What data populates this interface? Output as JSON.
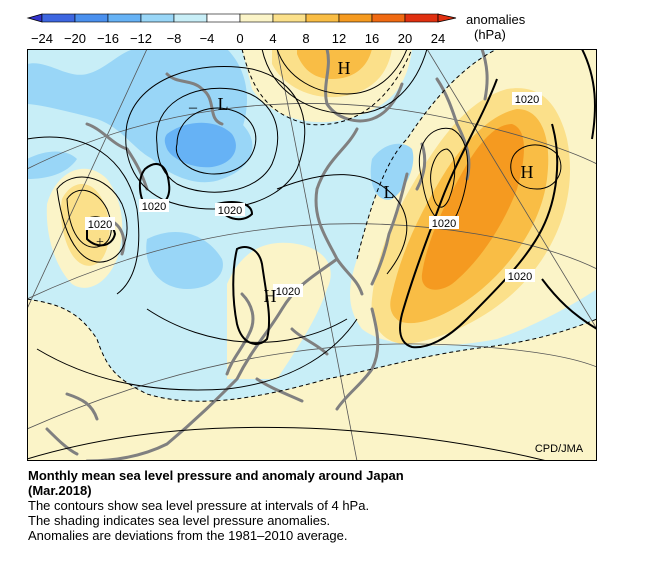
{
  "legend": {
    "title": "anomalies",
    "unit": "(hPa)",
    "ticks": [
      "−24",
      "−20",
      "−16",
      "−12",
      "−8",
      "−4",
      "0",
      "4",
      "8",
      "12",
      "16",
      "20",
      "24"
    ],
    "colors": [
      "#3333cc",
      "#3d66e0",
      "#4a90ee",
      "#66b2f5",
      "#99d6f7",
      "#c8eef7",
      "#ffffff",
      "#fbf4c8",
      "#fbe08a",
      "#f9bd45",
      "#f59a20",
      "#f06a12",
      "#e03010"
    ]
  },
  "map": {
    "credit": "CPD/JMA",
    "pressure_label": "1020",
    "high_symbol": "H",
    "low_symbol": "L",
    "minus_symbol": "–",
    "plus_symbol": "+",
    "coast_color": "#808080"
  },
  "caption": {
    "title_line1": "Monthly mean sea level pressure and anomaly around Japan",
    "title_line2": "(Mar.2018)",
    "line1": "The contours show sea level pressure at intervals of 4 hPa.",
    "line2": "The shading indicates sea level pressure anomalies.",
    "line3": "Anomalies are deviations from the 1981–2010 average."
  }
}
